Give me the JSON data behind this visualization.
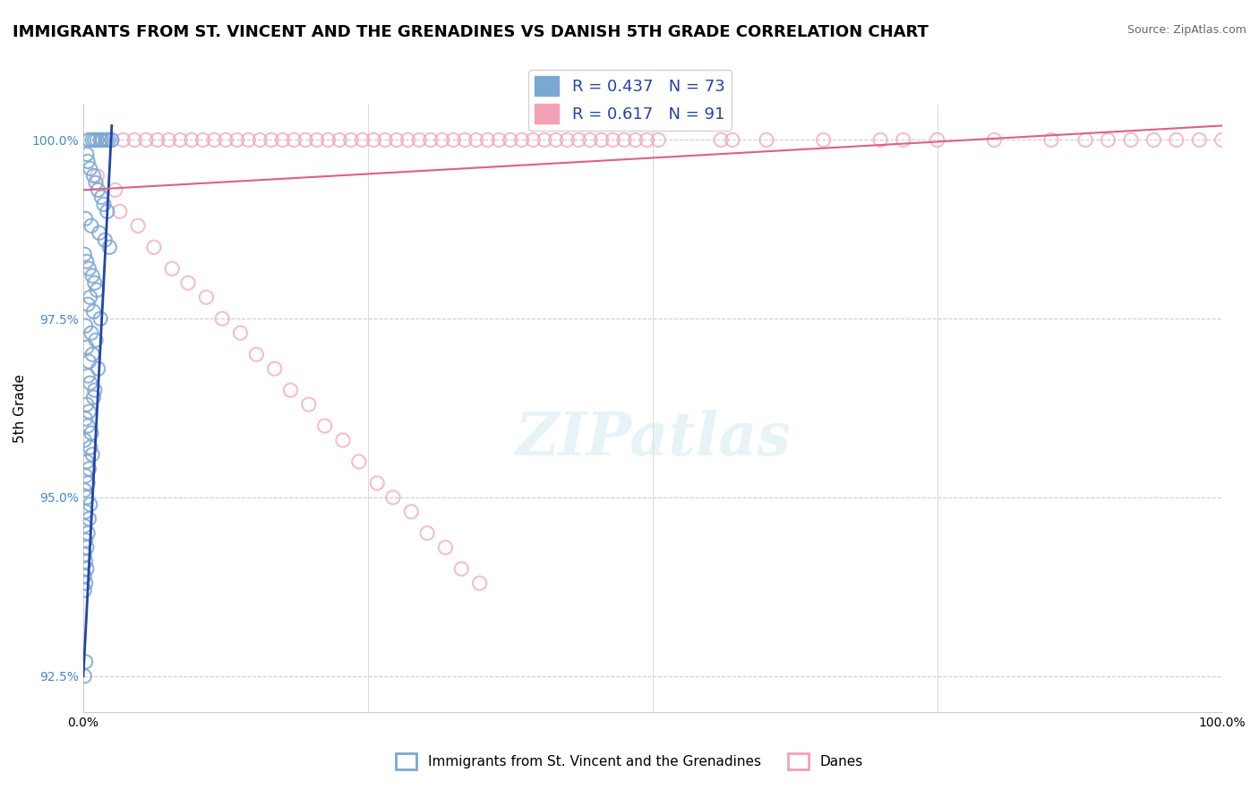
{
  "title": "IMMIGRANTS FROM ST. VINCENT AND THE GRENADINES VS DANISH 5TH GRADE CORRELATION CHART",
  "source": "Source: ZipAtlas.com",
  "xlabel": "",
  "ylabel": "5th Grade",
  "xlim": [
    0.0,
    100.0
  ],
  "ylim": [
    92.0,
    100.5
  ],
  "yticks": [
    92.5,
    95.0,
    97.5,
    100.0
  ],
  "ytick_labels": [
    "92.5%",
    "95.0%",
    "97.5%",
    "100.0%"
  ],
  "xticks": [
    0.0,
    25.0,
    50.0,
    75.0,
    100.0
  ],
  "xtick_labels": [
    "0.0%",
    "",
    "",
    "",
    "100.0%"
  ],
  "blue_R": 0.437,
  "blue_N": 73,
  "pink_R": 0.617,
  "pink_N": 91,
  "blue_color": "#7BA7D4",
  "pink_color": "#F4A0B5",
  "blue_line_color": "#2244AA",
  "pink_line_color": "#E06080",
  "legend_blue_label": "Immigrants from St. Vincent and the Grenadines",
  "legend_pink_label": "Danes",
  "watermark": "ZIPatlas",
  "background_color": "#ffffff",
  "grid_color": "#cccccc",
  "blue_x": [
    0.5,
    0.8,
    1.0,
    1.2,
    1.5,
    1.7,
    2.0,
    2.2,
    2.5,
    0.3,
    0.4,
    0.6,
    0.9,
    1.1,
    1.3,
    1.6,
    1.8,
    2.1,
    0.2,
    0.7,
    1.4,
    1.9,
    2.3,
    0.1,
    0.3,
    0.5,
    0.8,
    1.0,
    1.2,
    0.6,
    0.4,
    0.9,
    1.5,
    0.2,
    0.7,
    1.1,
    0.3,
    0.8,
    0.5,
    1.3,
    0.4,
    0.6,
    1.0,
    0.9,
    0.3,
    0.5,
    0.2,
    0.4,
    0.7,
    0.1,
    0.6,
    0.8,
    0.3,
    0.5,
    0.2,
    0.4,
    0.1,
    0.3,
    0.6,
    0.2,
    0.5,
    0.1,
    0.4,
    0.2,
    0.3,
    0.1,
    0.2,
    0.3,
    0.1,
    0.2,
    0.1,
    0.2,
    0.1
  ],
  "blue_y": [
    100.0,
    100.0,
    100.0,
    100.0,
    100.0,
    100.0,
    100.0,
    100.0,
    100.0,
    99.8,
    99.7,
    99.6,
    99.5,
    99.4,
    99.3,
    99.2,
    99.1,
    99.0,
    98.9,
    98.8,
    98.7,
    98.6,
    98.5,
    98.4,
    98.3,
    98.2,
    98.1,
    98.0,
    97.9,
    97.8,
    97.7,
    97.6,
    97.5,
    97.4,
    97.3,
    97.2,
    97.1,
    97.0,
    96.9,
    96.8,
    96.7,
    96.6,
    96.5,
    96.4,
    96.3,
    96.2,
    96.1,
    96.0,
    95.9,
    95.8,
    95.7,
    95.6,
    95.5,
    95.4,
    95.3,
    95.2,
    95.1,
    95.0,
    94.9,
    94.8,
    94.7,
    94.6,
    94.5,
    94.4,
    94.3,
    94.2,
    94.1,
    94.0,
    93.9,
    93.8,
    93.7,
    92.7,
    92.5
  ],
  "pink_x": [
    0.5,
    1.5,
    2.5,
    3.5,
    4.5,
    5.5,
    6.5,
    7.5,
    8.5,
    9.5,
    10.5,
    11.5,
    12.5,
    13.5,
    14.5,
    15.5,
    16.5,
    17.5,
    18.5,
    19.5,
    20.5,
    21.5,
    22.5,
    23.5,
    24.5,
    25.5,
    26.5,
    27.5,
    28.5,
    29.5,
    30.5,
    31.5,
    32.5,
    33.5,
    34.5,
    35.5,
    36.5,
    37.5,
    38.5,
    39.5,
    40.5,
    41.5,
    42.5,
    43.5,
    44.5,
    45.5,
    46.5,
    47.5,
    48.5,
    49.5,
    50.5,
    56.0,
    57.0,
    60.0,
    65.0,
    70.0,
    72.0,
    75.0,
    80.0,
    85.0,
    88.0,
    90.0,
    92.0,
    94.0,
    96.0,
    98.0,
    100.0,
    1.2,
    2.8,
    3.2,
    4.8,
    6.2,
    7.8,
    9.2,
    10.8,
    12.2,
    13.8,
    15.2,
    16.8,
    18.2,
    19.8,
    21.2,
    22.8,
    24.2,
    25.8,
    27.2,
    28.8,
    30.2,
    31.8,
    33.2,
    34.8
  ],
  "pink_y": [
    100.0,
    100.0,
    100.0,
    100.0,
    100.0,
    100.0,
    100.0,
    100.0,
    100.0,
    100.0,
    100.0,
    100.0,
    100.0,
    100.0,
    100.0,
    100.0,
    100.0,
    100.0,
    100.0,
    100.0,
    100.0,
    100.0,
    100.0,
    100.0,
    100.0,
    100.0,
    100.0,
    100.0,
    100.0,
    100.0,
    100.0,
    100.0,
    100.0,
    100.0,
    100.0,
    100.0,
    100.0,
    100.0,
    100.0,
    100.0,
    100.0,
    100.0,
    100.0,
    100.0,
    100.0,
    100.0,
    100.0,
    100.0,
    100.0,
    100.0,
    100.0,
    100.0,
    100.0,
    100.0,
    100.0,
    100.0,
    100.0,
    100.0,
    100.0,
    100.0,
    100.0,
    100.0,
    100.0,
    100.0,
    100.0,
    100.0,
    100.0,
    99.5,
    99.3,
    99.0,
    98.8,
    98.5,
    98.2,
    98.0,
    97.8,
    97.5,
    97.3,
    97.0,
    96.8,
    96.5,
    96.3,
    96.0,
    95.8,
    95.5,
    95.2,
    95.0,
    94.8,
    94.5,
    94.3,
    94.0,
    93.8
  ]
}
